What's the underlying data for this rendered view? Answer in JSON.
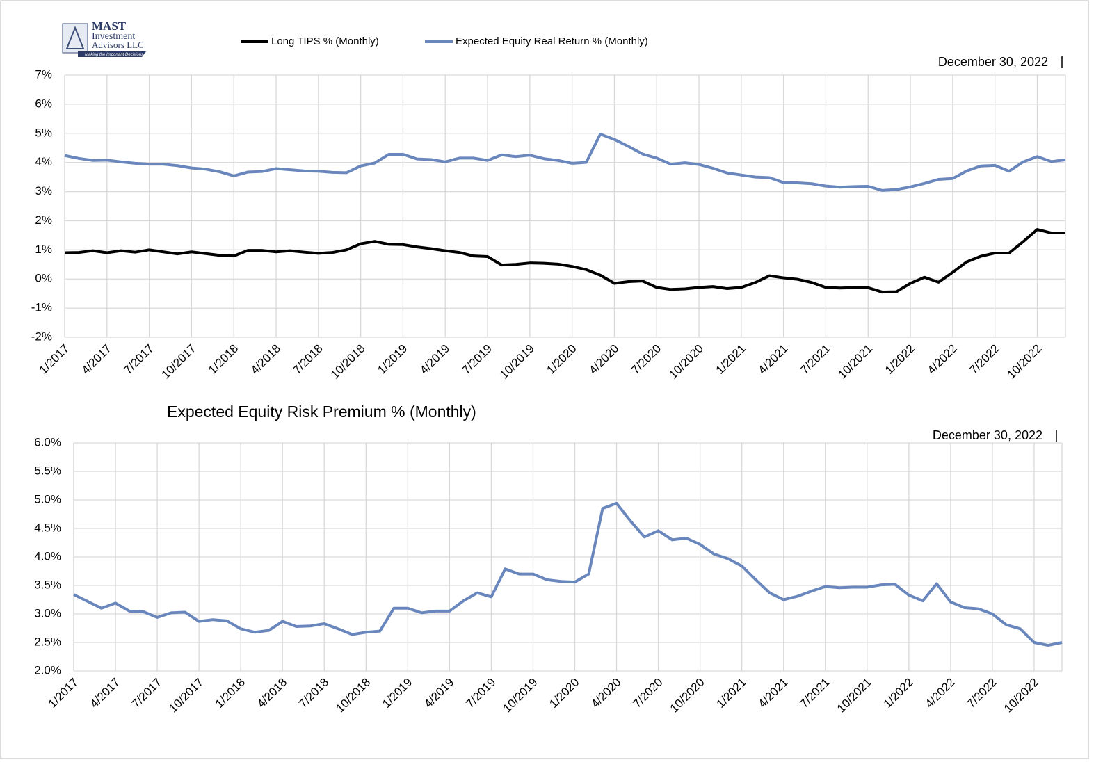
{
  "logo": {
    "name": "MAST",
    "lines": [
      "Investment",
      "Advisors LLC"
    ],
    "tagline": "Making the Important Decisions"
  },
  "chart_data": [
    {
      "type": "line",
      "annotation": "December 30, 2022",
      "legend": "top",
      "grid": true,
      "categories": [
        "1/2017",
        null,
        null,
        "4/2017",
        null,
        null,
        "7/2017",
        null,
        null,
        "10/2017",
        null,
        null,
        "1/2018",
        null,
        null,
        "4/2018",
        null,
        null,
        "7/2018",
        null,
        null,
        "10/2018",
        null,
        null,
        "1/2019",
        null,
        null,
        "4/2019",
        null,
        null,
        "7/2019",
        null,
        null,
        "10/2019",
        null,
        null,
        "1/2020",
        null,
        null,
        "4/2020",
        null,
        null,
        "7/2020",
        null,
        null,
        "10/2020",
        null,
        null,
        "1/2021",
        null,
        null,
        "4/2021",
        null,
        null,
        "7/2021",
        null,
        null,
        "10/2021",
        null,
        null,
        "1/2022",
        null,
        null,
        "4/2022",
        null,
        null,
        "7/2022",
        null,
        null,
        "10/2022",
        null,
        null
      ],
      "ylim": [
        -2,
        7
      ],
      "yticks": [
        {
          "value": -2,
          "label": "-2%"
        },
        {
          "value": -1,
          "label": "-1%"
        },
        {
          "value": 0,
          "label": "0%"
        },
        {
          "value": 1,
          "label": "1%"
        },
        {
          "value": 2,
          "label": "2%"
        },
        {
          "value": 3,
          "label": "3%"
        },
        {
          "value": 4,
          "label": "4%"
        },
        {
          "value": 5,
          "label": "5%"
        },
        {
          "value": 6,
          "label": "6%"
        },
        {
          "value": 7,
          "label": "7%"
        }
      ],
      "series": [
        {
          "name": "Long TIPS % (Monthly)",
          "color": "#000000",
          "values": [
            0.9,
            0.91,
            0.97,
            0.9,
            0.97,
            0.92,
            1.0,
            0.93,
            0.86,
            0.93,
            0.87,
            0.81,
            0.79,
            0.98,
            0.98,
            0.93,
            0.97,
            0.92,
            0.88,
            0.91,
            1.0,
            1.21,
            1.29,
            1.19,
            1.18,
            1.1,
            1.04,
            0.97,
            0.91,
            0.79,
            0.77,
            0.48,
            0.5,
            0.55,
            0.54,
            0.51,
            0.43,
            0.32,
            0.13,
            -0.15,
            -0.09,
            -0.07,
            -0.29,
            -0.36,
            -0.34,
            -0.29,
            -0.26,
            -0.33,
            -0.29,
            -0.12,
            0.11,
            0.04,
            -0.01,
            -0.12,
            -0.29,
            -0.31,
            -0.3,
            -0.3,
            -0.45,
            -0.44,
            -0.15,
            0.06,
            -0.11,
            0.23,
            0.59,
            0.78,
            0.89,
            0.89,
            1.28,
            1.7,
            1.58,
            1.58
          ]
        },
        {
          "name": "Expected Equity Real Return % (Monthly)",
          "color": "#6a87bd",
          "values": [
            4.24,
            4.14,
            4.07,
            4.08,
            4.02,
            3.97,
            3.94,
            3.94,
            3.89,
            3.81,
            3.77,
            3.68,
            3.54,
            3.67,
            3.69,
            3.79,
            3.75,
            3.71,
            3.7,
            3.66,
            3.65,
            3.88,
            3.98,
            4.28,
            4.28,
            4.12,
            4.1,
            4.02,
            4.15,
            4.15,
            4.07,
            4.26,
            4.2,
            4.25,
            4.13,
            4.07,
            3.97,
            4.0,
            4.97,
            4.79,
            4.55,
            4.29,
            4.15,
            3.94,
            3.99,
            3.93,
            3.8,
            3.64,
            3.57,
            3.5,
            3.48,
            3.31,
            3.3,
            3.27,
            3.19,
            3.15,
            3.17,
            3.18,
            3.04,
            3.07,
            3.16,
            3.28,
            3.42,
            3.45,
            3.71,
            3.88,
            3.9,
            3.7,
            4.02,
            4.2,
            4.03,
            4.09
          ]
        }
      ]
    },
    {
      "type": "line",
      "title": "Expected Equity Risk Premium % (Monthly)",
      "annotation": "December 30, 2022",
      "grid": true,
      "categories": [
        "1/2017",
        null,
        null,
        "4/2017",
        null,
        null,
        "7/2017",
        null,
        null,
        "10/2017",
        null,
        null,
        "1/2018",
        null,
        null,
        "4/2018",
        null,
        null,
        "7/2018",
        null,
        null,
        "10/2018",
        null,
        null,
        "1/2019",
        null,
        null,
        "4/2019",
        null,
        null,
        "7/2019",
        null,
        null,
        "10/2019",
        null,
        null,
        "1/2020",
        null,
        null,
        "4/2020",
        null,
        null,
        "7/2020",
        null,
        null,
        "10/2020",
        null,
        null,
        "1/2021",
        null,
        null,
        "4/2021",
        null,
        null,
        "7/2021",
        null,
        null,
        "10/2021",
        null,
        null,
        "1/2022",
        null,
        null,
        "4/2022",
        null,
        null,
        "7/2022",
        null,
        null,
        "10/2022",
        null,
        null
      ],
      "ylim": [
        2.0,
        6.0
      ],
      "yticks": [
        {
          "value": 2.0,
          "label": "2.0%"
        },
        {
          "value": 2.5,
          "label": "2.5%"
        },
        {
          "value": 3.0,
          "label": "3.0%"
        },
        {
          "value": 3.5,
          "label": "3.5%"
        },
        {
          "value": 4.0,
          "label": "4.0%"
        },
        {
          "value": 4.5,
          "label": "4.5%"
        },
        {
          "value": 5.0,
          "label": "5.0%"
        },
        {
          "value": 5.5,
          "label": "5.5%"
        },
        {
          "value": 6.0,
          "label": "6.0%"
        }
      ],
      "color": "#6a87bd",
      "values": [
        3.34,
        3.22,
        3.1,
        3.19,
        3.05,
        3.04,
        2.94,
        3.02,
        3.03,
        2.87,
        2.9,
        2.88,
        2.74,
        2.68,
        2.71,
        2.87,
        2.78,
        2.79,
        2.83,
        2.74,
        2.64,
        2.68,
        2.7,
        3.1,
        3.1,
        3.02,
        3.05,
        3.05,
        3.23,
        3.37,
        3.3,
        3.79,
        3.7,
        3.7,
        3.6,
        3.57,
        3.56,
        3.7,
        4.85,
        4.94,
        4.63,
        4.35,
        4.46,
        4.3,
        4.33,
        4.22,
        4.05,
        3.97,
        3.84,
        3.6,
        3.37,
        3.25,
        3.31,
        3.4,
        3.48,
        3.46,
        3.47,
        3.47,
        3.51,
        3.52,
        3.33,
        3.23,
        3.53,
        3.21,
        3.11,
        3.09,
        3.0,
        2.81,
        2.74,
        2.5,
        2.45,
        2.5
      ]
    }
  ]
}
